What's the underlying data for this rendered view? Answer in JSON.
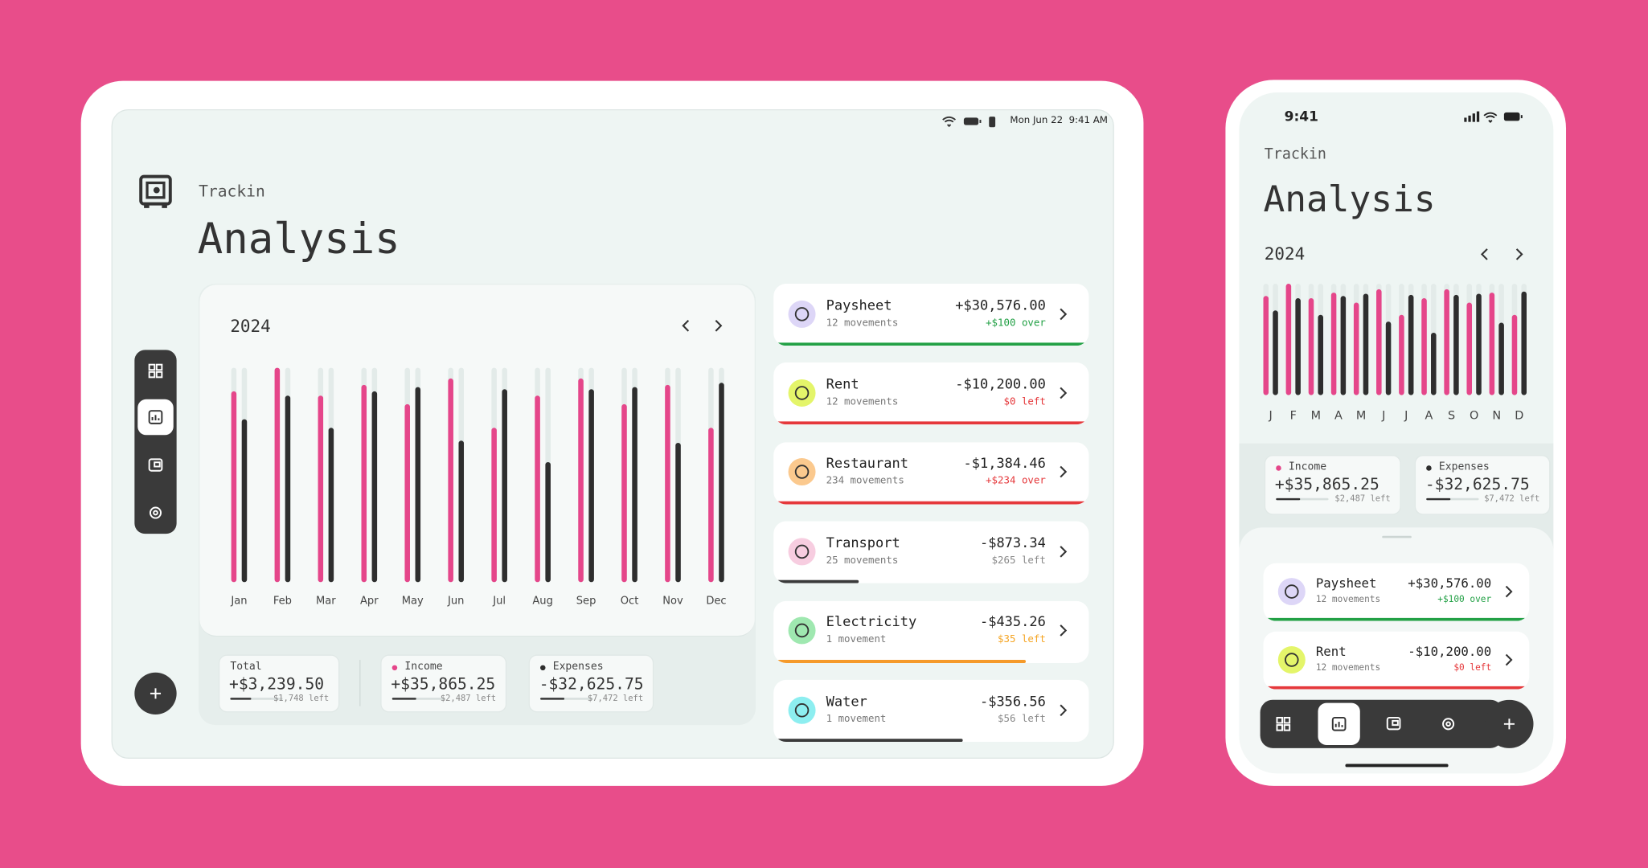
{
  "tablet": {
    "status_date": "Mon Jun 22",
    "status_time": "9:41 AM",
    "app_name": "Trackin",
    "title": "Analysis",
    "year": "2024",
    "summary": [
      {
        "label": "Total",
        "amount": "+$3,239.50",
        "remaining": "$1,748 left",
        "progress": 40
      },
      {
        "label": "Income",
        "amount": "+$35,865.25",
        "remaining": "$2,487 left",
        "progress": 45,
        "dot_color": "#e5468a"
      },
      {
        "label": "Expenses",
        "amount": "-$32,625.75",
        "remaining": "$7,472 left",
        "progress": 45,
        "dot_color": "#2e2e2e"
      }
    ],
    "accounts": [
      {
        "name": "Paysheet",
        "movements": "12 movements",
        "amount": "+$30,576.00",
        "status": "+$100 over",
        "status_color": "#22a045",
        "progress": 100,
        "color": "#22a045",
        "icon_color": "#ddd6f7"
      },
      {
        "name": "Rent",
        "movements": "12 movements",
        "amount": "-$10,200.00",
        "status": "$0 left",
        "status_color": "#e5383b",
        "progress": 100,
        "color": "#e5383b",
        "icon_color": "#e4f56a"
      },
      {
        "name": "Restaurant",
        "movements": "234 movements",
        "amount": "-$1,384.46",
        "status": "+$234 over",
        "status_color": "#e5383b",
        "progress": 100,
        "color": "#e5383b",
        "icon_color": "#fbc98e"
      },
      {
        "name": "Transport",
        "movements": "25 movements",
        "amount": "-$873.34",
        "status": "$265 left",
        "status_color": "#888888",
        "progress": 27,
        "color": "#3a3a3a",
        "icon_color": "#f7cde0"
      },
      {
        "name": "Electricity",
        "movements": "1 movement",
        "amount": "-$435.26",
        "status": "$35 left",
        "status_color": "#f5a524",
        "progress": 80,
        "color": "#f59a2a",
        "icon_color": "#9fe8b0"
      },
      {
        "name": "Water",
        "movements": "1 movement",
        "amount": "-$356.56",
        "status": "$56 left",
        "status_color": "#888888",
        "progress": 60,
        "color": "#3a3a3a",
        "icon_color": "#8deef0"
      }
    ]
  },
  "phone": {
    "status_time": "9:41",
    "app_name": "Trackin",
    "title": "Analysis",
    "year": "2024",
    "summary": [
      {
        "label": "Income",
        "amount": "+$35,865.25",
        "remaining": "$2,487 left",
        "progress": 45,
        "dot_color": "#e5468a"
      },
      {
        "label": "Expenses",
        "amount": "-$32,625.75",
        "remaining": "$7,472 left",
        "progress": 45,
        "dot_color": "#2e2e2e"
      }
    ],
    "accounts": [
      {
        "name": "Paysheet",
        "movements": "12 movements",
        "amount": "+$30,576.00",
        "status": "+$100 over",
        "status_color": "#22a045",
        "progress": 100,
        "color": "#22a045",
        "icon_color": "#ddd6f7"
      },
      {
        "name": "Rent",
        "movements": "12 movements",
        "amount": "-$10,200.00",
        "status": "$0 left",
        "status_color": "#e5383b",
        "progress": 100,
        "color": "#e5383b",
        "icon_color": "#e4f56a"
      }
    ]
  },
  "chart_data": [
    {
      "type": "bar",
      "categories": [
        "Jan",
        "Feb",
        "Mar",
        "Apr",
        "May",
        "Jun",
        "Jul",
        "Aug",
        "Sep",
        "Oct",
        "Nov",
        "Dec"
      ],
      "series": [
        {
          "name": "Income",
          "color": "#e5468a",
          "values": [
            89,
            100,
            87,
            92,
            83,
            95,
            72,
            87,
            95,
            83,
            92,
            72
          ]
        },
        {
          "name": "Expenses",
          "color": "#2e2e2e",
          "values": [
            76,
            87,
            72,
            89,
            91,
            66,
            90,
            56,
            90,
            91,
            65,
            93
          ]
        }
      ],
      "ylim": [
        0,
        100
      ]
    },
    {
      "type": "bar",
      "categories": [
        "J",
        "F",
        "M",
        "A",
        "M",
        "J",
        "J",
        "A",
        "S",
        "O",
        "N",
        "D"
      ],
      "series": [
        {
          "color": "#e5468a",
          "values": [
            89,
            100,
            87,
            92,
            83,
            95,
            72,
            87,
            95,
            83,
            92,
            72
          ]
        },
        {
          "color": "#2e2e2e",
          "values": [
            76,
            87,
            72,
            89,
            91,
            66,
            90,
            56,
            90,
            91,
            65,
            93
          ]
        }
      ],
      "ylim": [
        0,
        100
      ]
    }
  ]
}
